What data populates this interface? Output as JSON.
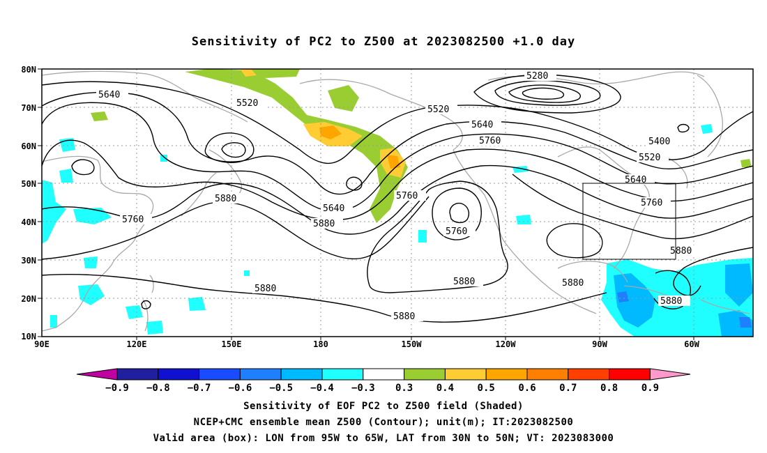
{
  "title": "Sensitivity of PC2 to Z500 at 2023082500 +1.0 day",
  "lat_labels": [
    "80N",
    "70N",
    "60N",
    "50N",
    "40N",
    "30N",
    "20N",
    "10N"
  ],
  "lon_labels": [
    "90E",
    "120E",
    "150E",
    "180",
    "150W",
    "120W",
    "90W",
    "60W"
  ],
  "contour_labels": [
    {
      "text": "5640"
    },
    {
      "text": "5520"
    },
    {
      "text": "5520"
    },
    {
      "text": "5280"
    },
    {
      "text": "5640"
    },
    {
      "text": "5760"
    },
    {
      "text": "5400"
    },
    {
      "text": "5520"
    },
    {
      "text": "5640"
    },
    {
      "text": "5760"
    },
    {
      "text": "5880"
    },
    {
      "text": "5640"
    },
    {
      "text": "5760"
    },
    {
      "text": "5880"
    },
    {
      "text": "5760"
    },
    {
      "text": "5760"
    },
    {
      "text": "5880"
    },
    {
      "text": "5880"
    },
    {
      "text": "5880"
    },
    {
      "text": "5880"
    },
    {
      "text": "5880"
    },
    {
      "text": "5880"
    }
  ],
  "colorbar": {
    "colors": [
      "#c000a0",
      "#1f1fa0",
      "#1010d0",
      "#1a4cff",
      "#1e7fff",
      "#00baff",
      "#1fffff",
      "#ffffff",
      "#9acd32",
      "#ffcc33",
      "#ffa500",
      "#ff7f00",
      "#ff4000",
      "#ff0000",
      "#ff99cc"
    ],
    "labels": [
      "−0.9",
      "−0.8",
      "−0.7",
      "−0.6",
      "−0.5",
      "−0.4",
      "−0.3",
      "0.3",
      "0.4",
      "0.5",
      "0.6",
      "0.7",
      "0.8",
      "0.9"
    ]
  },
  "captions": {
    "line1": "Sensitivity of EOF PC2 to Z500 field (Shaded)",
    "line2": "NCEP+CMC ensemble mean Z500 (Contour); unit(m); IT:2023082500",
    "line3": "Valid area (box): LON from 95W to 65W, LAT from 30N to 50N; VT: 2023083000"
  },
  "colors": {
    "coast": "#a8a8a8",
    "contour": "#000000",
    "grid": "#999999",
    "shade_positive_low": "#9acd32",
    "shade_positive_mid": "#ffcc33",
    "shade_positive_high": "#ffa500",
    "shade_negative_low": "#1fffff",
    "shade_negative_mid": "#00baff",
    "shade_negative_high": "#1e7fff"
  }
}
